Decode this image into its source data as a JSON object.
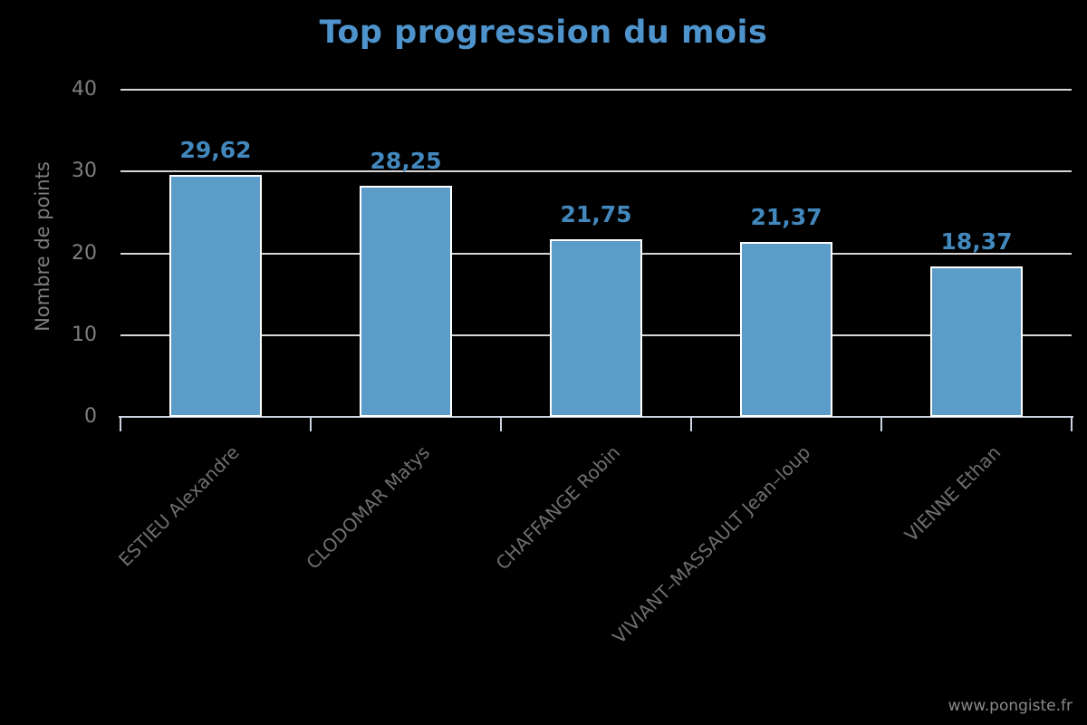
{
  "page": {
    "background_color": "#000000"
  },
  "footer": {
    "site": "www.pongiste.fr",
    "color": "#8A8A8A"
  },
  "chart_data": {
    "type": "bar",
    "title": "Top progression du mois",
    "title_color": "#4E93CB",
    "xlabel": "",
    "ylabel": "Nombre de points",
    "ylim": [
      0,
      40
    ],
    "yticks": [
      0,
      10,
      20,
      30,
      40
    ],
    "grid": "horizontal",
    "legend": "none",
    "categories": [
      "ESTIEU Alexandre",
      "CLODOMAR Matys",
      "CHAFFANGE Robin",
      "VIVIANT–MASSAULT Jean–loup",
      "VIENNE Ethan"
    ],
    "values": [
      29.62,
      28.25,
      21.75,
      21.37,
      18.37
    ],
    "value_labels": [
      "29,62",
      "28,25",
      "21,75",
      "21,37",
      "18,37"
    ],
    "bar_color": "#5C9CC9",
    "bar_border_color": "#FFFFFF",
    "value_label_color": "#4288BD",
    "grid_color": "#D6D6D6",
    "axis_color": "#CBD4E0",
    "y_tick_label_color": "#7E7E7E",
    "category_label_color": "#6F6F6F",
    "y_axis_title_color": "#7E7E7E"
  }
}
